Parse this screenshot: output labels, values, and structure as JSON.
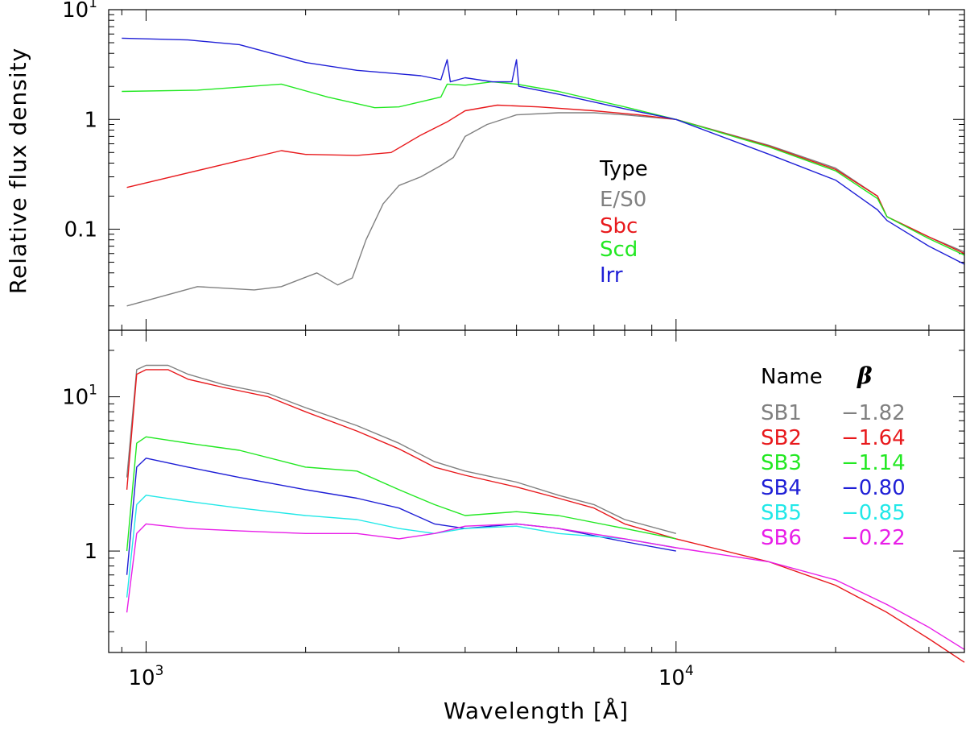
{
  "chart_data": [
    {
      "type": "line",
      "panel": "top",
      "xscale": "log",
      "yscale": "log",
      "xlim": [
        850,
        35000
      ],
      "ylim": [
        0.012,
        10
      ],
      "ylabel": "Relative flux density",
      "xlabel": "",
      "y_ticks": [
        {
          "value": 10,
          "base": "10",
          "exp": "1"
        },
        {
          "value": 1,
          "label": "1"
        },
        {
          "value": 0.1,
          "label": "0.1"
        }
      ],
      "legend": {
        "title": "Type",
        "placement": "center"
      },
      "series": [
        {
          "name": "E/S0",
          "color": "#808080",
          "points": [
            [
              920,
              0.02
            ],
            [
              1250,
              0.03
            ],
            [
              1600,
              0.028
            ],
            [
              1800,
              0.03
            ],
            [
              2100,
              0.04
            ],
            [
              2300,
              0.031
            ],
            [
              2450,
              0.036
            ],
            [
              2600,
              0.08
            ],
            [
              2800,
              0.17
            ],
            [
              3000,
              0.25
            ],
            [
              3300,
              0.3
            ],
            [
              3600,
              0.38
            ],
            [
              3800,
              0.45
            ],
            [
              4000,
              0.7
            ],
            [
              4400,
              0.9
            ],
            [
              5000,
              1.1
            ],
            [
              6000,
              1.15
            ],
            [
              7000,
              1.15
            ],
            [
              8000,
              1.1
            ],
            [
              10000,
              1.0
            ],
            [
              15000,
              0.58
            ],
            [
              20000,
              0.36
            ],
            [
              24000,
              0.2
            ],
            [
              25000,
              0.13
            ],
            [
              30000,
              0.085
            ],
            [
              35000,
              0.062
            ]
          ]
        },
        {
          "name": "Sbc",
          "color": "#e8191c",
          "points": [
            [
              920,
              0.24
            ],
            [
              1800,
              0.52
            ],
            [
              2000,
              0.48
            ],
            [
              2500,
              0.47
            ],
            [
              2900,
              0.5
            ],
            [
              3300,
              0.72
            ],
            [
              3700,
              0.95
            ],
            [
              4000,
              1.2
            ],
            [
              4600,
              1.35
            ],
            [
              5500,
              1.3
            ],
            [
              7000,
              1.2
            ],
            [
              8500,
              1.1
            ],
            [
              10000,
              1.0
            ],
            [
              15000,
              0.57
            ],
            [
              20000,
              0.35
            ],
            [
              24000,
              0.2
            ],
            [
              25000,
              0.13
            ],
            [
              30000,
              0.085
            ],
            [
              35000,
              0.06
            ]
          ]
        },
        {
          "name": "Scd",
          "color": "#22e822",
          "points": [
            [
              900,
              1.8
            ],
            [
              1250,
              1.85
            ],
            [
              1800,
              2.1
            ],
            [
              2200,
              1.6
            ],
            [
              2700,
              1.28
            ],
            [
              3000,
              1.3
            ],
            [
              3300,
              1.45
            ],
            [
              3600,
              1.6
            ],
            [
              3700,
              2.1
            ],
            [
              4000,
              2.05
            ],
            [
              4500,
              2.2
            ],
            [
              5000,
              2.1
            ],
            [
              6000,
              1.8
            ],
            [
              8000,
              1.3
            ],
            [
              10000,
              1.0
            ],
            [
              15000,
              0.56
            ],
            [
              20000,
              0.34
            ],
            [
              24000,
              0.19
            ],
            [
              25000,
              0.13
            ],
            [
              30000,
              0.082
            ],
            [
              35000,
              0.058
            ]
          ]
        },
        {
          "name": "Irr",
          "color": "#1f1fd6",
          "points": [
            [
              900,
              5.5
            ],
            [
              1200,
              5.3
            ],
            [
              1500,
              4.8
            ],
            [
              2000,
              3.3
            ],
            [
              2500,
              2.8
            ],
            [
              3300,
              2.5
            ],
            [
              3600,
              2.3
            ],
            [
              3700,
              3.5
            ],
            [
              3750,
              2.2
            ],
            [
              4000,
              2.4
            ],
            [
              4500,
              2.2
            ],
            [
              4900,
              2.2
            ],
            [
              5000,
              3.5
            ],
            [
              5050,
              2.0
            ],
            [
              6000,
              1.7
            ],
            [
              8000,
              1.25
            ],
            [
              10000,
              1.0
            ],
            [
              15000,
              0.48
            ],
            [
              20000,
              0.28
            ],
            [
              24000,
              0.15
            ],
            [
              25000,
              0.12
            ],
            [
              30000,
              0.07
            ],
            [
              35000,
              0.048
            ]
          ]
        }
      ]
    },
    {
      "type": "line",
      "panel": "bottom",
      "xscale": "log",
      "yscale": "log",
      "xlim": [
        850,
        35000
      ],
      "ylim": [
        0.22,
        27
      ],
      "xlabel": "Wavelength [Å]",
      "ylabel": "",
      "x_ticks": [
        {
          "value": 1000,
          "base": "10",
          "exp": "3"
        },
        {
          "value": 10000,
          "base": "10",
          "exp": "4"
        }
      ],
      "y_ticks": [
        {
          "value": 10,
          "base": "10",
          "exp": "1"
        },
        {
          "value": 1,
          "label": "1"
        }
      ],
      "legend": {
        "title": "Name",
        "beta_title": "β",
        "placement": "right"
      },
      "series": [
        {
          "name": "SB1",
          "beta": "−1.82",
          "color": "#808080",
          "points": [
            [
              920,
              3
            ],
            [
              960,
              15
            ],
            [
              1000,
              16
            ],
            [
              1100,
              16
            ],
            [
              1200,
              14
            ],
            [
              1400,
              12
            ],
            [
              1700,
              10.5
            ],
            [
              2000,
              8.5
            ],
            [
              2500,
              6.5
            ],
            [
              3000,
              5
            ],
            [
              3500,
              3.8
            ],
            [
              4000,
              3.3
            ],
            [
              5000,
              2.8
            ],
            [
              6000,
              2.3
            ],
            [
              7000,
              2
            ],
            [
              8000,
              1.6
            ],
            [
              10000,
              1.3
            ]
          ]
        },
        {
          "name": "SB2",
          "beta": "−1.64",
          "color": "#e8191c",
          "points": [
            [
              920,
              2.5
            ],
            [
              960,
              14
            ],
            [
              1000,
              15
            ],
            [
              1100,
              15
            ],
            [
              1200,
              13
            ],
            [
              1400,
              11.5
            ],
            [
              1700,
              10
            ],
            [
              2000,
              8
            ],
            [
              2500,
              6
            ],
            [
              3000,
              4.6
            ],
            [
              3500,
              3.5
            ],
            [
              4000,
              3.1
            ],
            [
              5000,
              2.6
            ],
            [
              6000,
              2.2
            ],
            [
              7000,
              1.9
            ],
            [
              8000,
              1.5
            ],
            [
              10000,
              1.2
            ],
            [
              15000,
              0.85
            ],
            [
              20000,
              0.6
            ],
            [
              25000,
              0.4
            ],
            [
              30000,
              0.27
            ],
            [
              35000,
              0.19
            ]
          ]
        },
        {
          "name": "SB3",
          "beta": "−1.14",
          "color": "#22e822",
          "points": [
            [
              920,
              1
            ],
            [
              960,
              5
            ],
            [
              1000,
              5.5
            ],
            [
              1200,
              5
            ],
            [
              1500,
              4.5
            ],
            [
              2000,
              3.5
            ],
            [
              2500,
              3.3
            ],
            [
              3000,
              2.5
            ],
            [
              3500,
              2
            ],
            [
              4000,
              1.7
            ],
            [
              5000,
              1.8
            ],
            [
              6000,
              1.7
            ],
            [
              8000,
              1.4
            ],
            [
              10000,
              1.2
            ]
          ]
        },
        {
          "name": "SB4",
          "beta": "−0.80",
          "color": "#1f1fd6",
          "points": [
            [
              920,
              0.7
            ],
            [
              960,
              3.5
            ],
            [
              1000,
              4
            ],
            [
              1200,
              3.5
            ],
            [
              1500,
              3
            ],
            [
              2000,
              2.5
            ],
            [
              2500,
              2.2
            ],
            [
              3000,
              1.9
            ],
            [
              3500,
              1.5
            ],
            [
              4000,
              1.4
            ],
            [
              5000,
              1.5
            ],
            [
              6000,
              1.4
            ],
            [
              8000,
              1.15
            ],
            [
              10000,
              1
            ]
          ]
        },
        {
          "name": "SB5",
          "beta": "−0.85",
          "color": "#22e8e8",
          "points": [
            [
              920,
              0.5
            ],
            [
              960,
              2
            ],
            [
              1000,
              2.3
            ],
            [
              1200,
              2.1
            ],
            [
              1500,
              1.9
            ],
            [
              2000,
              1.7
            ],
            [
              2500,
              1.6
            ],
            [
              3000,
              1.4
            ],
            [
              3500,
              1.3
            ],
            [
              4000,
              1.4
            ],
            [
              5000,
              1.45
            ],
            [
              6000,
              1.3
            ],
            [
              8000,
              1.2
            ],
            [
              10000,
              1.05
            ]
          ]
        },
        {
          "name": "SB6",
          "beta": "−0.22",
          "color": "#e81ee8",
          "points": [
            [
              920,
              0.4
            ],
            [
              960,
              1.3
            ],
            [
              1000,
              1.5
            ],
            [
              1200,
              1.4
            ],
            [
              1500,
              1.35
            ],
            [
              2000,
              1.3
            ],
            [
              2500,
              1.3
            ],
            [
              3000,
              1.2
            ],
            [
              3500,
              1.3
            ],
            [
              4000,
              1.45
            ],
            [
              5000,
              1.5
            ],
            [
              6000,
              1.4
            ],
            [
              8000,
              1.2
            ],
            [
              10000,
              1.05
            ],
            [
              15000,
              0.85
            ],
            [
              20000,
              0.65
            ],
            [
              25000,
              0.45
            ],
            [
              30000,
              0.32
            ],
            [
              35000,
              0.23
            ]
          ]
        }
      ]
    }
  ]
}
